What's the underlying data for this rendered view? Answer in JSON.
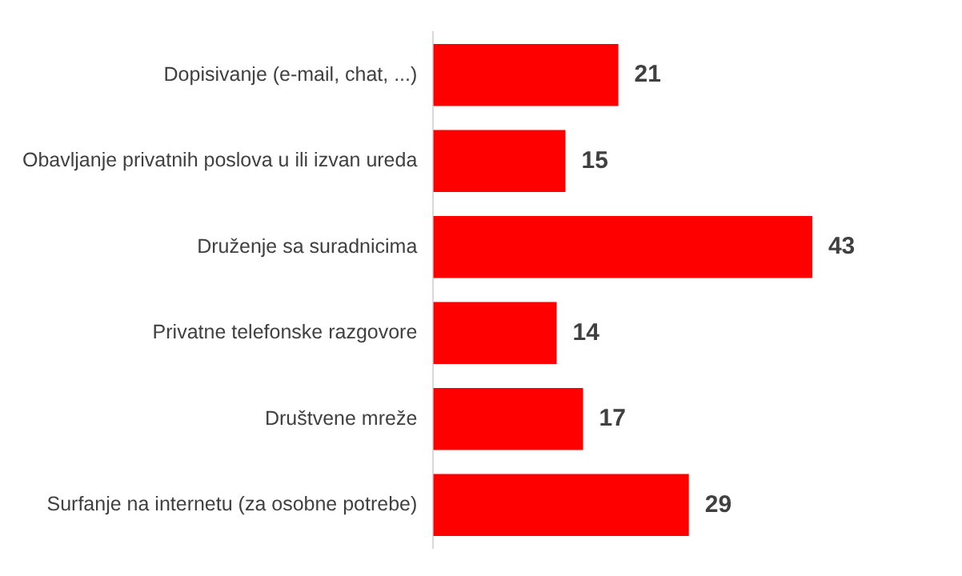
{
  "chart_data": {
    "type": "bar",
    "orientation": "horizontal",
    "categories": [
      "Dopisivanje (e-mail, chat, ...)",
      "Obavljanje privatnih poslova u ili izvan ureda",
      "Druženje sa suradnicima",
      "Privatne telefonske razgovore",
      "Društvene mreže",
      "Surfanje na internetu (za osobne potrebe)"
    ],
    "values": [
      21,
      15,
      43,
      14,
      17,
      29
    ],
    "color": "#ff0000",
    "data_labels": true,
    "grid": false,
    "legend": false,
    "tick_labels": "y"
  }
}
